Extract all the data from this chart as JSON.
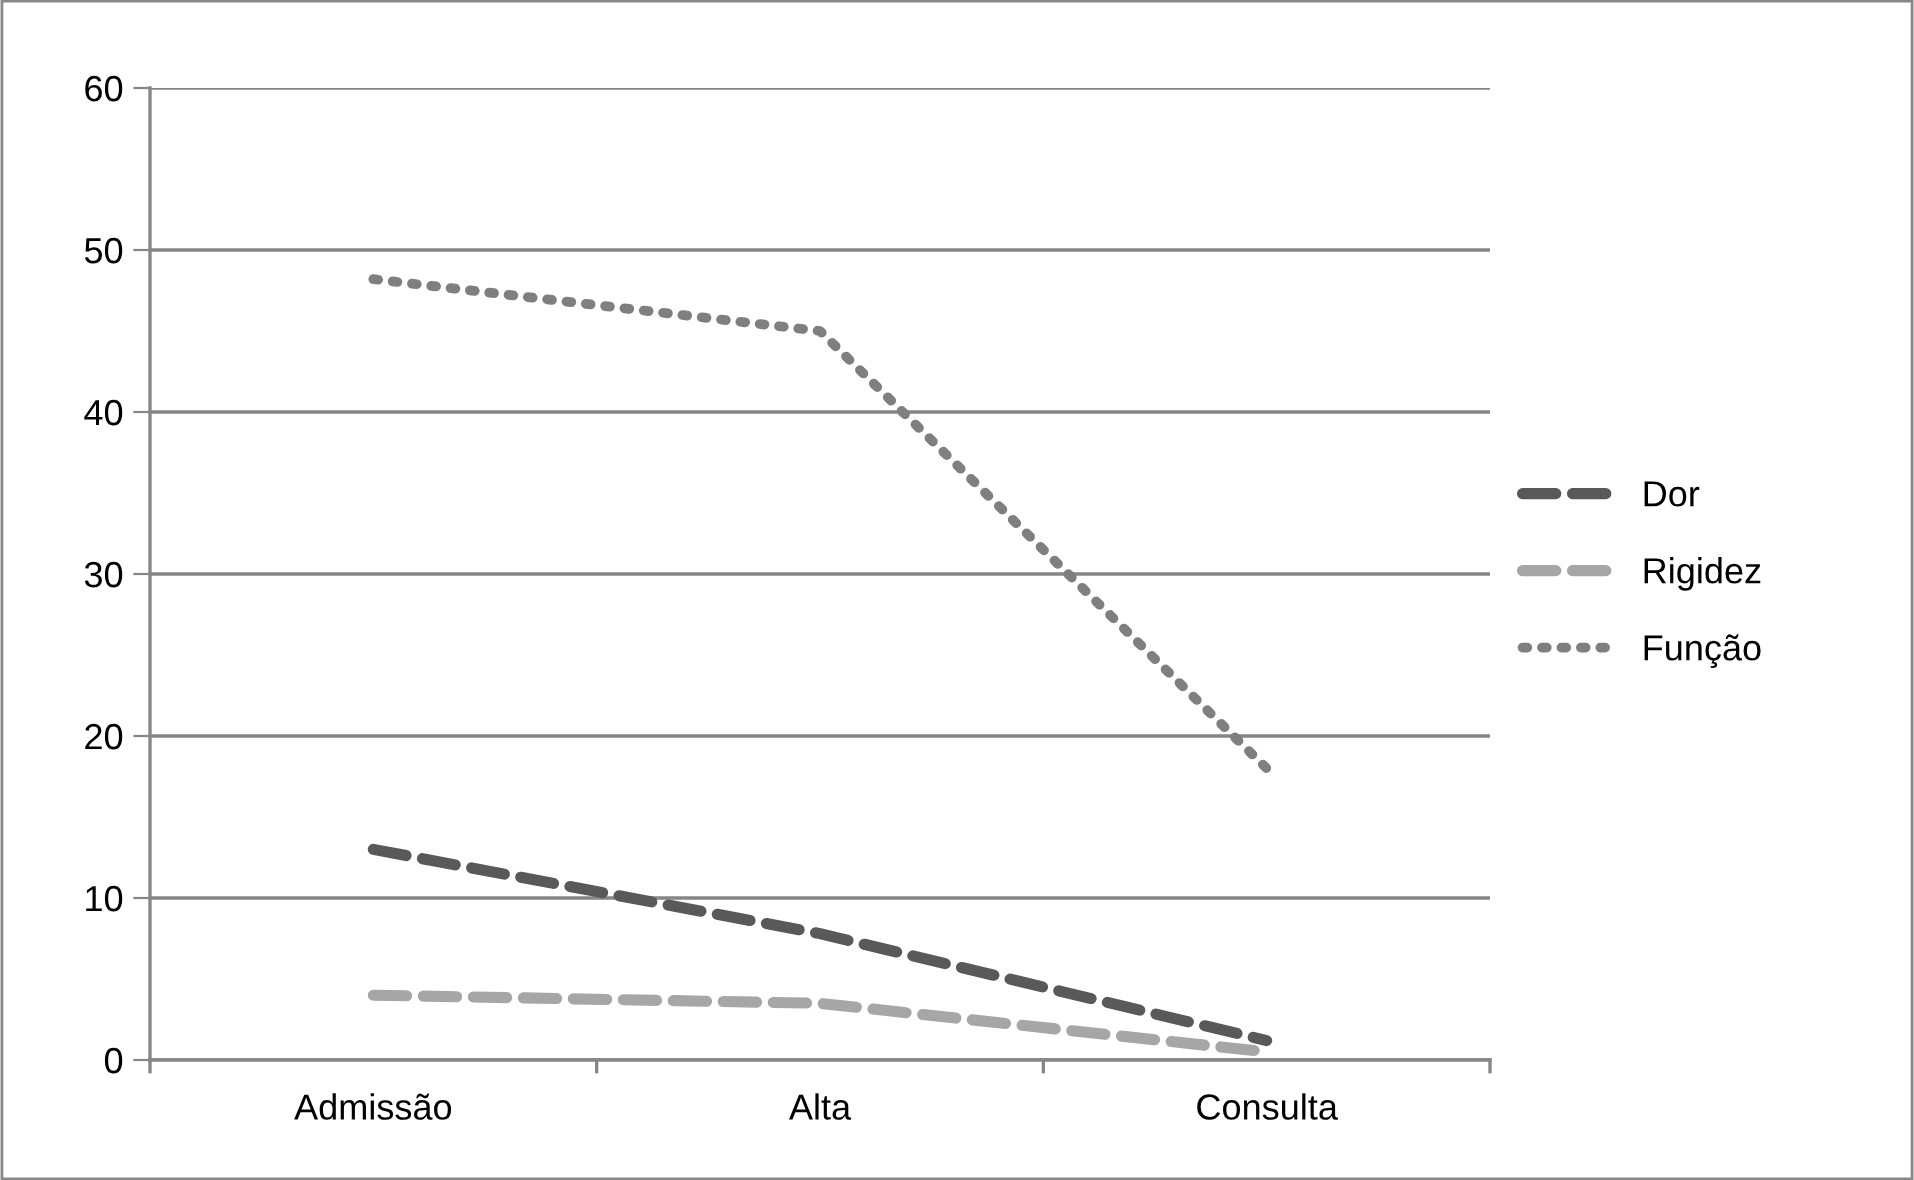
{
  "chart_data": {
    "type": "line",
    "categories": [
      "Admissão",
      "Alta",
      "Consulta"
    ],
    "series": [
      {
        "name": "Dor",
        "color": "#595959",
        "values": [
          13,
          7.8,
          1.2
        ],
        "line_style": "dashed"
      },
      {
        "name": "Rigidez",
        "color": "#a6a6a6",
        "values": [
          4,
          3.5,
          0.5
        ],
        "line_style": "dashed"
      },
      {
        "name": "Função",
        "color": "#7f7f7f",
        "values": [
          48.2,
          45,
          18
        ],
        "line_style": "dotted"
      }
    ],
    "ylim": [
      0,
      60
    ],
    "yticks": [
      0,
      10,
      20,
      30,
      40,
      50,
      60
    ],
    "grid": "y",
    "legend": "right",
    "marker": "none"
  }
}
